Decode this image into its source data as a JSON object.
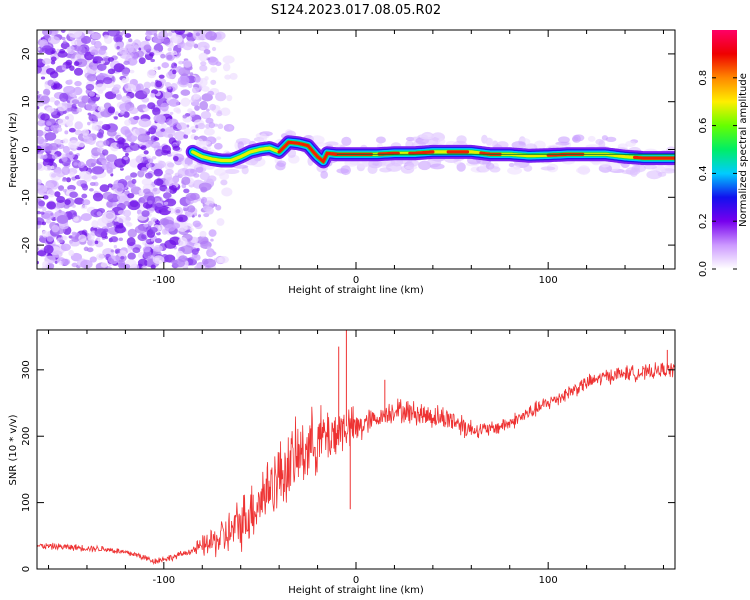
{
  "title": "S124.2023.017.08.05.R02",
  "chart_data": [
    {
      "type": "heatmap",
      "title": "S124.2023.017.08.05.R02",
      "xlabel": "Height of straight line (km)",
      "ylabel": "Frequency (Hz)",
      "xlim": [
        -166,
        166
      ],
      "ylim": [
        -25,
        25
      ],
      "x_ticks": [
        -100,
        0,
        100
      ],
      "y_ticks": [
        -20,
        -10,
        0,
        10,
        20
      ],
      "colorbar": {
        "label": "Normalized spectral amplitude",
        "range": [
          0,
          1
        ],
        "ticks": [
          0.0,
          0.2,
          0.4,
          0.6,
          0.8
        ],
        "colors": [
          "#ffffff",
          "#cc99ff",
          "#7700ee",
          "#1111ee",
          "#00ccff",
          "#00ee66",
          "#66ff00",
          "#ffee00",
          "#ff8800",
          "#ee0000",
          "#ff0066"
        ]
      },
      "ridge": {
        "x": [
          -85,
          -80,
          -75,
          -70,
          -65,
          -60,
          -55,
          -50,
          -45,
          -40,
          -35,
          -30,
          -25,
          -20,
          -17,
          -15,
          -10,
          0,
          10,
          20,
          30,
          40,
          50,
          60,
          70,
          80,
          90,
          100,
          110,
          120,
          130,
          140,
          150,
          160,
          166
        ],
        "y": [
          -0.5,
          -1.5,
          -2.0,
          -2.3,
          -2.3,
          -1.5,
          -0.5,
          0.0,
          0.3,
          -0.5,
          1.5,
          1.3,
          0.8,
          -1.5,
          -2.5,
          -0.8,
          -1.0,
          -1.0,
          -1.0,
          -0.8,
          -0.8,
          -0.5,
          -0.5,
          -0.5,
          -1.0,
          -1.0,
          -1.3,
          -1.2,
          -1.0,
          -1.0,
          -1.0,
          -1.5,
          -1.8,
          -1.8,
          -1.8
        ]
      },
      "noise_region": {
        "x_from": -166,
        "x_to": -62
      }
    },
    {
      "type": "line",
      "xlabel": "Height of straight line (km)",
      "ylabel": "SNR (10 * v/v)",
      "xlim": [
        -166,
        166
      ],
      "ylim": [
        0,
        360
      ],
      "x_ticks": [
        -100,
        0,
        100
      ],
      "y_ticks": [
        0,
        100,
        200,
        300
      ],
      "color": "#ee3333",
      "trend": {
        "x": [
          -166,
          -150,
          -130,
          -115,
          -105,
          -95,
          -85,
          -75,
          -65,
          -55,
          -45,
          -35,
          -25,
          -20,
          -15,
          -10,
          -5,
          0,
          5,
          10,
          20,
          30,
          40,
          50,
          60,
          70,
          80,
          90,
          100,
          110,
          120,
          130,
          140,
          150,
          160,
          166
        ],
        "y": [
          35,
          33,
          30,
          22,
          12,
          18,
          28,
          40,
          55,
          85,
          125,
          155,
          185,
          195,
          200,
          205,
          215,
          210,
          220,
          225,
          240,
          235,
          230,
          225,
          210,
          210,
          220,
          235,
          250,
          265,
          280,
          290,
          295,
          295,
          300,
          300
        ]
      },
      "spikes": [
        {
          "x": -5,
          "y": 363
        },
        {
          "x": -9,
          "y": 335
        },
        {
          "x": 15,
          "y": 285
        },
        {
          "x": 162,
          "y": 330
        },
        {
          "x": -3,
          "y": 90
        }
      ]
    }
  ]
}
